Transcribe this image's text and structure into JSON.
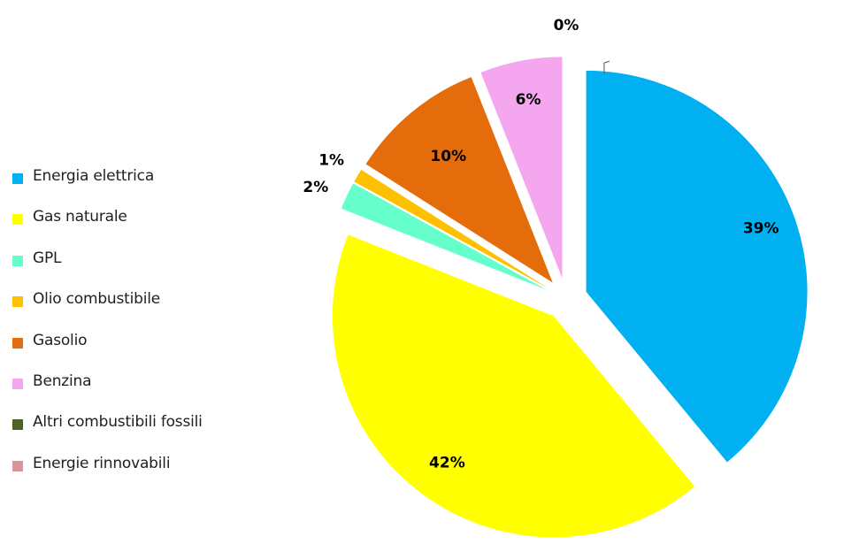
{
  "chart_data": {
    "type": "pie",
    "title": "",
    "legend_position": "left",
    "categories": [
      "Energia elettrica",
      "Gas naturale",
      "GPL",
      "Olio combustibile",
      "Gasolio",
      "Benzina",
      "Altri combustibili fossili",
      "Energie rinnovabili"
    ],
    "values": [
      39,
      42,
      2,
      1,
      10,
      6,
      0,
      0
    ],
    "data_labels": [
      "39%",
      "42%",
      "2%",
      "1%",
      "10%",
      "6%",
      "0%",
      ""
    ],
    "colors": [
      "#00B0F0",
      "#FFFF00",
      "#66FFCC",
      "#FFC000",
      "#E46C0A",
      "#F4A6EE",
      "#4F6228",
      "#D99694"
    ]
  }
}
